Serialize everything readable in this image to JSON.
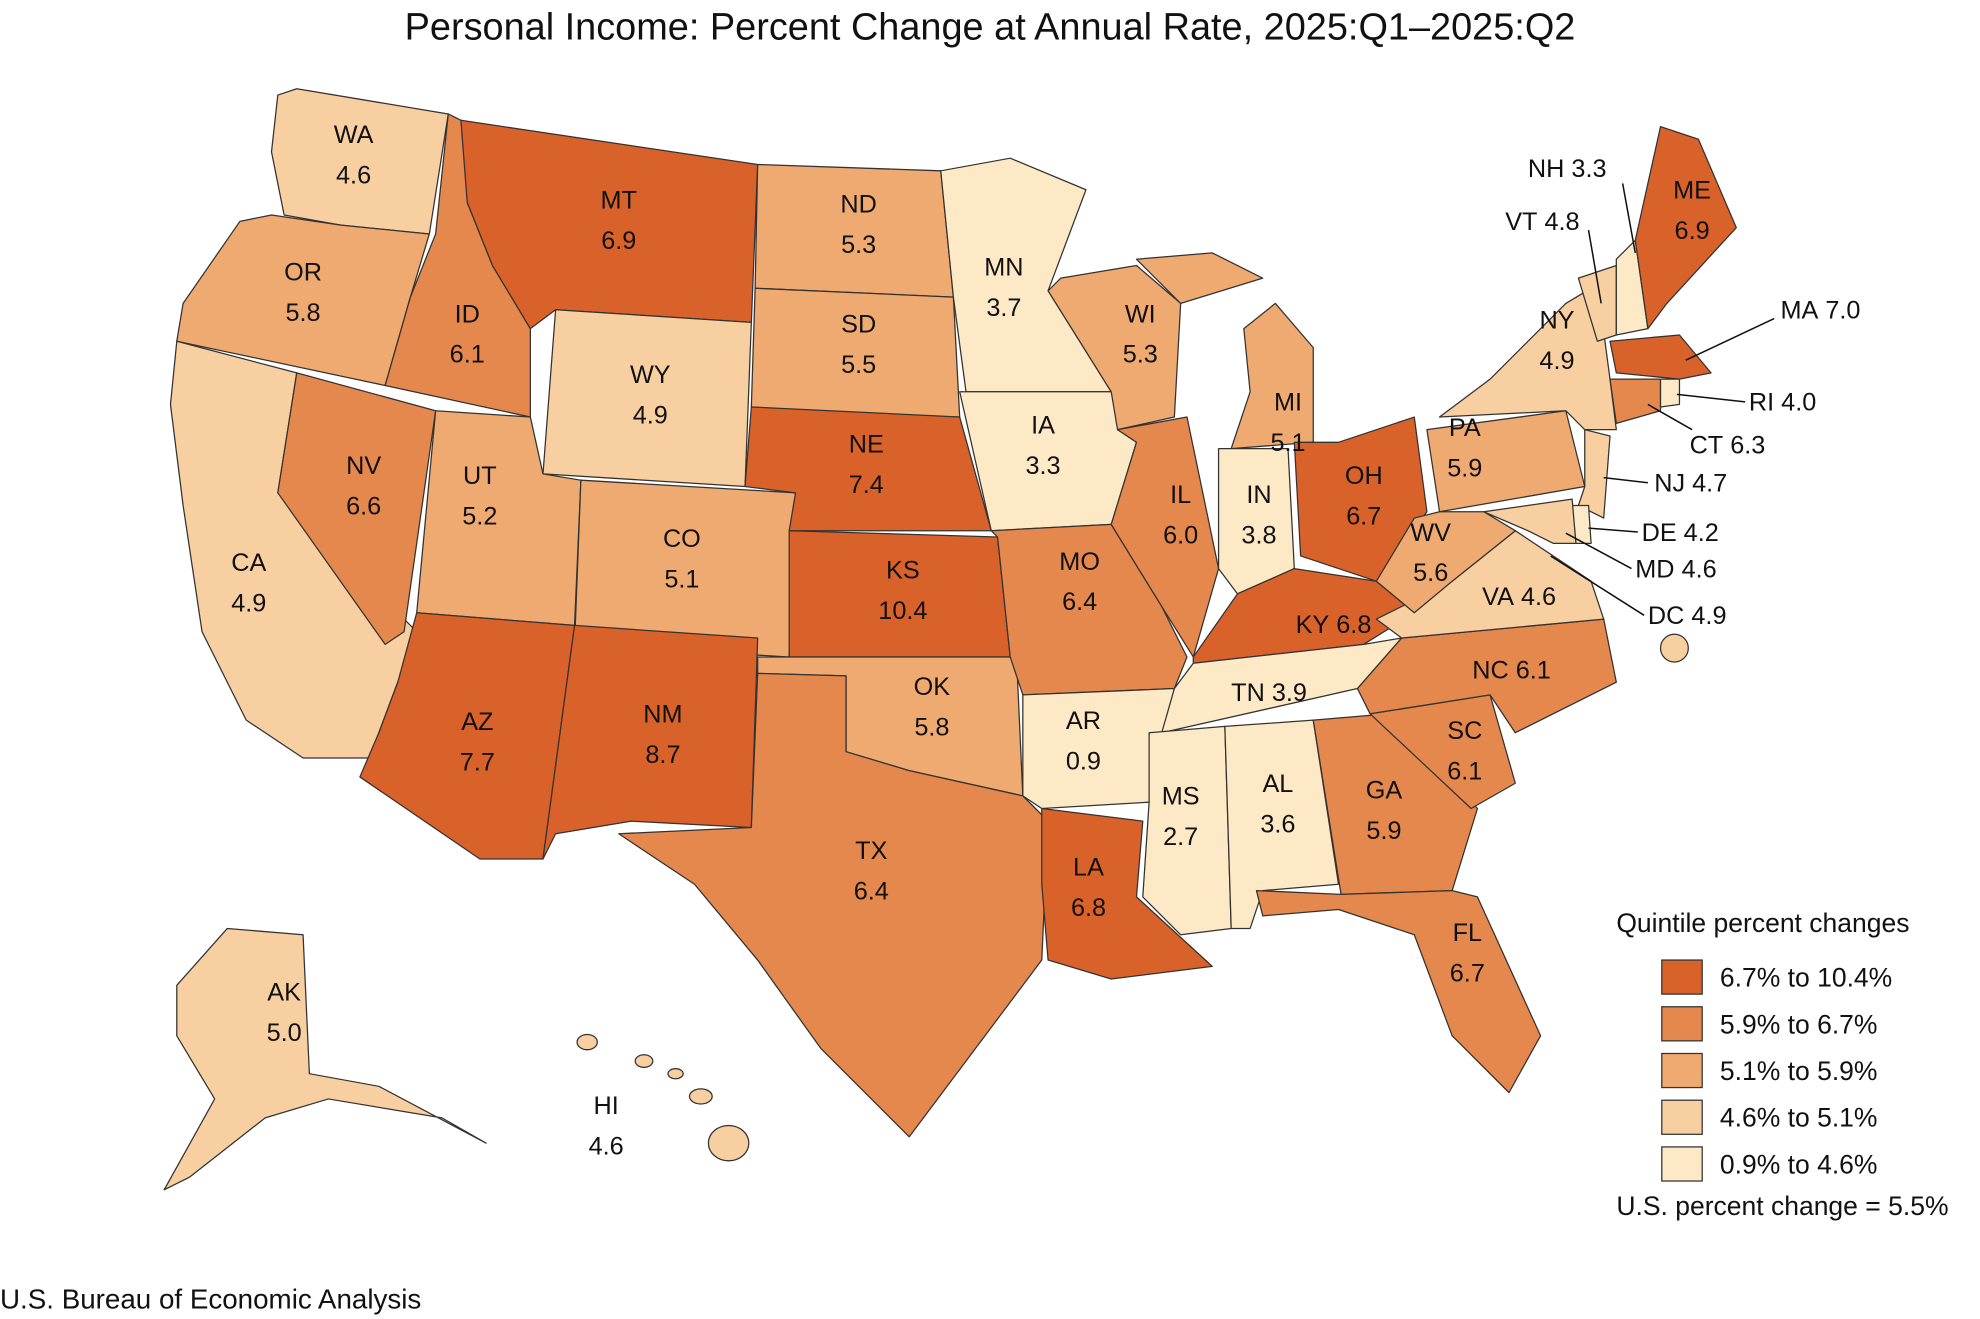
{
  "title": "Personal Income: Percent Change at Annual Rate, 2025:Q1–2025:Q2",
  "states": [
    {
      "name": "WA",
      "value": 4.6,
      "color": "#f8cfa0"
    },
    {
      "name": "OR",
      "value": 5.8,
      "color": "#efaa72"
    },
    {
      "name": "CA",
      "value": 4.9,
      "color": "#f8cfa0"
    },
    {
      "name": "NV",
      "value": 6.6,
      "color": "#e5884e"
    },
    {
      "name": "ID",
      "value": 6.1,
      "color": "#e5884e"
    },
    {
      "name": "MT",
      "value": 6.9,
      "color": "#d9622b"
    },
    {
      "name": "WY",
      "value": 4.9,
      "color": "#f8cfa0"
    },
    {
      "name": "UT",
      "value": 5.2,
      "color": "#efaa72"
    },
    {
      "name": "CO",
      "value": 5.1,
      "color": "#efaa72"
    },
    {
      "name": "AZ",
      "value": 7.7,
      "color": "#d9622b"
    },
    {
      "name": "NM",
      "value": 8.7,
      "color": "#d9622b"
    },
    {
      "name": "ND",
      "value": 5.3,
      "color": "#efaa72"
    },
    {
      "name": "SD",
      "value": 5.5,
      "color": "#efaa72"
    },
    {
      "name": "NE",
      "value": 7.4,
      "color": "#d9622b"
    },
    {
      "name": "KS",
      "value": 10.4,
      "color": "#d9622b"
    },
    {
      "name": "OK",
      "value": 5.8,
      "color": "#efaa72"
    },
    {
      "name": "TX",
      "value": 6.4,
      "color": "#e5884e"
    },
    {
      "name": "MN",
      "value": 3.7,
      "color": "#fde9c6"
    },
    {
      "name": "IA",
      "value": 3.3,
      "color": "#fde9c6"
    },
    {
      "name": "MO",
      "value": 6.4,
      "color": "#e5884e"
    },
    {
      "name": "AR",
      "value": 0.9,
      "color": "#fde9c6"
    },
    {
      "name": "LA",
      "value": 6.8,
      "color": "#d9622b"
    },
    {
      "name": "WI",
      "value": 5.3,
      "color": "#efaa72"
    },
    {
      "name": "IL",
      "value": 6.0,
      "value_label": "6.0",
      "color": "#e5884e"
    },
    {
      "name": "MI",
      "value": 5.1,
      "color": "#efaa72"
    },
    {
      "name": "IN",
      "value": 3.8,
      "color": "#fde9c6"
    },
    {
      "name": "OH",
      "value": 6.7,
      "color": "#d9622b"
    },
    {
      "name": "KY",
      "value": 6.8,
      "color": "#d9622b"
    },
    {
      "name": "TN",
      "value": 3.9,
      "color": "#fde9c6"
    },
    {
      "name": "MS",
      "value": 2.7,
      "color": "#fde9c6"
    },
    {
      "name": "AL",
      "value": 3.6,
      "color": "#fde9c6"
    },
    {
      "name": "GA",
      "value": 5.9,
      "color": "#e5884e"
    },
    {
      "name": "FL",
      "value": 6.7,
      "color": "#e5884e"
    },
    {
      "name": "SC",
      "value": 6.1,
      "color": "#e5884e"
    },
    {
      "name": "NC",
      "value": 6.1,
      "color": "#e5884e"
    },
    {
      "name": "VA",
      "value": 4.6,
      "color": "#f8cfa0"
    },
    {
      "name": "WV",
      "value": 5.6,
      "color": "#efaa72"
    },
    {
      "name": "PA",
      "value": 5.9,
      "color": "#efaa72"
    },
    {
      "name": "NY",
      "value": 4.9,
      "color": "#f8cfa0"
    },
    {
      "name": "VT",
      "value": 4.8,
      "color": "#f8cfa0"
    },
    {
      "name": "NH",
      "value": 3.3,
      "color": "#fde9c6"
    },
    {
      "name": "ME",
      "value": 6.9,
      "color": "#d9622b"
    },
    {
      "name": "MA",
      "value": 7.0,
      "value_label": "7.0",
      "color": "#d9622b"
    },
    {
      "name": "CT",
      "value": 6.3,
      "color": "#e5884e"
    },
    {
      "name": "RI",
      "value": 4.0,
      "value_label": "4.0",
      "color": "#fde9c6"
    },
    {
      "name": "NJ",
      "value": 4.7,
      "color": "#f8cfa0"
    },
    {
      "name": "DE",
      "value": 4.2,
      "color": "#fde9c6"
    },
    {
      "name": "MD",
      "value": 4.6,
      "color": "#f8cfa0"
    },
    {
      "name": "DC",
      "value": 4.9,
      "color": "#f8cfa0"
    },
    {
      "name": "AK",
      "value": 5.0,
      "value_label": "5.0",
      "color": "#f8cfa0"
    },
    {
      "name": "HI",
      "value": 4.6,
      "color": "#f8cfa0"
    }
  ],
  "legend": {
    "title": "Quintile percent changes",
    "classes": [
      {
        "label": "6.7% to 10.4%",
        "color": "#d9622b"
      },
      {
        "label": "5.9% to 6.7%",
        "color": "#e5884e"
      },
      {
        "label": "5.1% to 5.9%",
        "color": "#efaa72"
      },
      {
        "label": "4.6% to 5.1%",
        "color": "#f8cfa0"
      },
      {
        "label": "0.9% to 4.6%",
        "color": "#fde9c6"
      }
    ]
  },
  "note": "U.S. percent change = 5.5%",
  "source": "U.S. Bureau of Economic Analysis"
}
